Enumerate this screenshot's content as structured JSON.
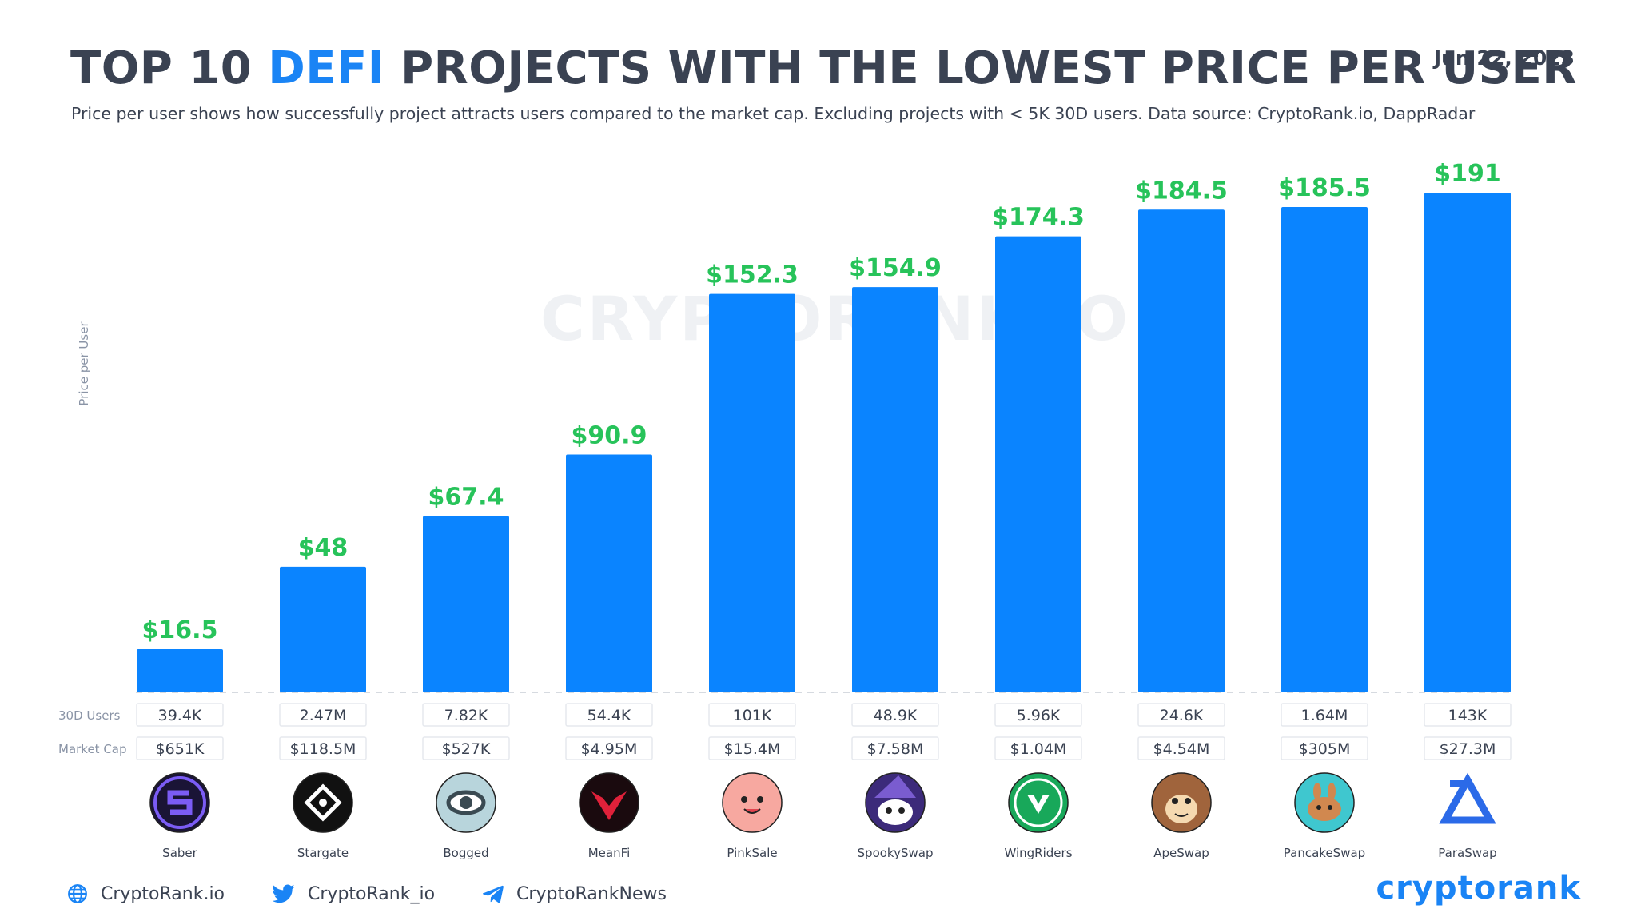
{
  "header": {
    "title_prefix": "TOP 10 ",
    "title_accent": "DEFI",
    "title_suffix": " PROJECTS WITH THE LOWEST PRICE PER USER",
    "date": "Jun 22, 2023",
    "subtitle": "Price per user shows how successfully project attracts users compared to the market cap. Excluding projects with < 5K 30D users. Data source: CryptoRank.io, DappRadar"
  },
  "watermark": "CRYPTORANK.IO",
  "colors": {
    "bar": "#0a84ff",
    "value_label": "#27c35a",
    "accent": "#1a84f5",
    "text": "#3a4252"
  },
  "chart_data": {
    "type": "bar",
    "title": "TOP 10 DEFI PROJECTS WITH THE LOWEST PRICE PER USER",
    "ylabel": "Price per User",
    "xlabel": "",
    "ylim": [
      0,
      191
    ],
    "grid": false,
    "categories": [
      "Saber",
      "Stargate",
      "Bogged",
      "MeanFi",
      "PinkSale",
      "SpookySwap",
      "WingRiders",
      "ApeSwap",
      "PancakeSwap",
      "ParaSwap"
    ],
    "values": [
      16.5,
      48,
      67.4,
      90.9,
      152.3,
      154.9,
      174.3,
      184.5,
      185.5,
      191
    ],
    "value_labels": [
      "$16.5",
      "$48",
      "$67.4",
      "$90.9",
      "$152.3",
      "$154.9",
      "$174.3",
      "$184.5",
      "$185.5",
      "$191"
    ],
    "rows": [
      {
        "label": "30D Users",
        "values": [
          "39.4K",
          "2.47M",
          "7.82K",
          "54.4K",
          "101K",
          "48.9K",
          "5.96K",
          "24.6K",
          "1.64M",
          "143K"
        ]
      },
      {
        "label": "Market Cap",
        "values": [
          "$651K",
          "$118.5M",
          "$527K",
          "$4.95M",
          "$15.4M",
          "$7.58M",
          "$1.04M",
          "$4.54M",
          "$305M",
          "$27.3M"
        ]
      }
    ],
    "logos": [
      {
        "icon": "saber-icon",
        "bg": "#1a1436",
        "fg": "#7b5cf5"
      },
      {
        "icon": "stargate-icon",
        "bg": "#111111",
        "fg": "#ffffff"
      },
      {
        "icon": "bogged-icon",
        "bg": "#b8d5dc",
        "fg": "#3a4a52"
      },
      {
        "icon": "meanfi-icon",
        "bg": "#1a0a0e",
        "fg": "#e0213a"
      },
      {
        "icon": "pinksale-icon",
        "bg": "#f7a8a0",
        "fg": "#222222"
      },
      {
        "icon": "spookyswap-icon",
        "bg": "#3c2a7a",
        "fg": "#ffffff"
      },
      {
        "icon": "wingriders-icon",
        "bg": "#18a85a",
        "fg": "#ffffff"
      },
      {
        "icon": "apeswap-icon",
        "bg": "#a0643c",
        "fg": "#f5d9b0"
      },
      {
        "icon": "pancakeswap-icon",
        "bg": "#3fc7cf",
        "fg": "#d1884f"
      },
      {
        "icon": "paraswap-icon",
        "bg": "#ffffff",
        "fg": "#2b6ae8"
      }
    ]
  },
  "footer": {
    "website": "CryptoRank.io",
    "twitter": "CryptoRank_io",
    "telegram": "CryptoRankNews",
    "brand": "cryptorank"
  }
}
